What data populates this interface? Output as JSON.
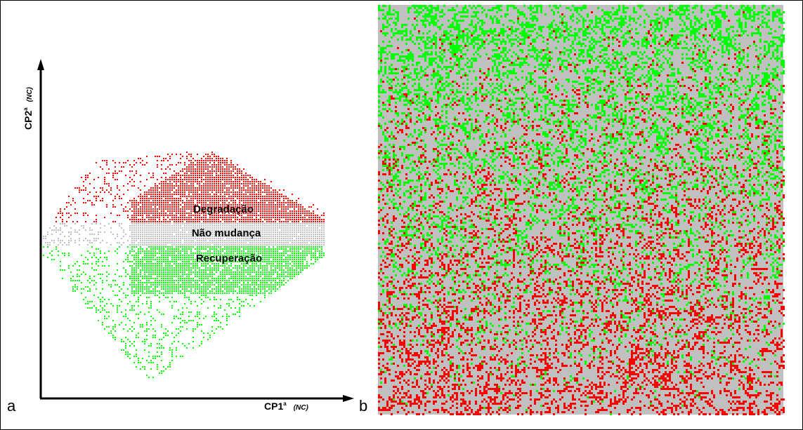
{
  "panels": [
    {
      "label": "a",
      "y_axis": {
        "label": "CP2",
        "superscript": "a",
        "unit": "(NC)"
      },
      "x_axis": {
        "label": "CP1",
        "superscript": "a",
        "unit": "(NC)"
      },
      "regions": [
        "Degradação",
        "Não mudança",
        "Recuperação"
      ]
    },
    {
      "label": "b"
    }
  ]
}
